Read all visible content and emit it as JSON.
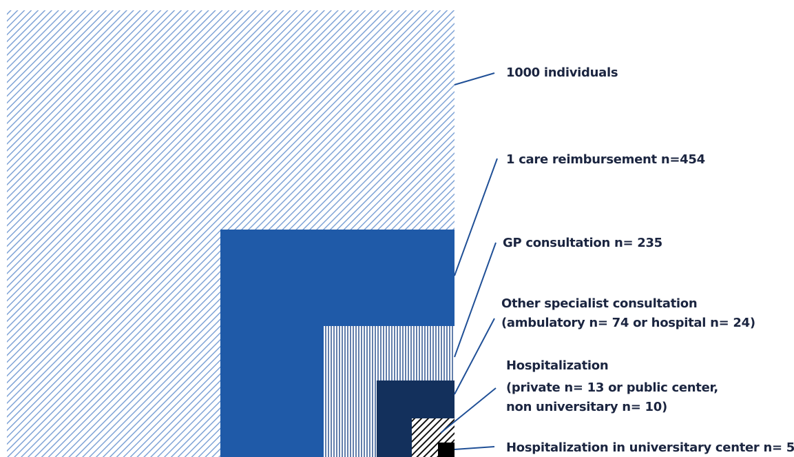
{
  "labels": [
    {
      "lines": [
        "1000 individuals"
      ]
    },
    {
      "lines": [
        "1 care reimbursement n=454"
      ]
    },
    {
      "lines": [
        "GP consultation n= 235"
      ]
    },
    {
      "lines": [
        "Other specialist consultation",
        "(ambulatory n= 74 or hospital n= 24)"
      ]
    },
    {
      "lines": [
        "Hospitalization",
        "(private n= 13 or public center,",
        "non universitary n= 10)"
      ]
    },
    {
      "lines": [
        "Hospitalization in universitary center n= 5"
      ]
    }
  ]
}
